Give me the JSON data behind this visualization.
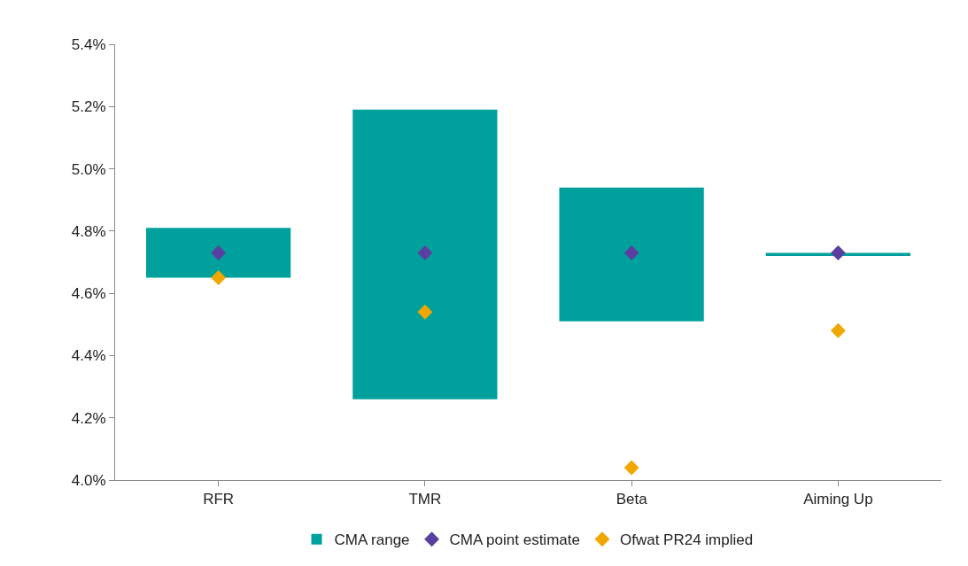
{
  "chart_data": {
    "type": "bar",
    "categories": [
      "RFR",
      "TMR",
      "Beta",
      "Aiming Up"
    ],
    "series": [
      {
        "name": "CMA range",
        "color": "#00a19c",
        "base": [
          4.65,
          4.26,
          4.51,
          4.72
        ],
        "values": [
          0.16,
          0.93,
          0.43,
          0.01
        ]
      },
      {
        "name": "CMA point estimate",
        "type": "scatter",
        "color": "#5b3fa0",
        "values": [
          4.73,
          4.73,
          4.73,
          4.73
        ]
      },
      {
        "name": "Ofwat PR24 implied",
        "type": "scatter",
        "color": "#f0a800",
        "values": [
          4.65,
          4.54,
          4.04,
          4.48
        ]
      }
    ],
    "ylim": [
      4.0,
      5.4
    ],
    "yticks": [
      {
        "value": 4.0,
        "label": "4.0%"
      },
      {
        "value": 4.2,
        "label": "4.2%"
      },
      {
        "value": 4.4,
        "label": "4.4%"
      },
      {
        "value": 4.6,
        "label": "4.6%"
      },
      {
        "value": 4.8,
        "label": "4.8%"
      },
      {
        "value": 5.0,
        "label": "5.0%"
      },
      {
        "value": 5.2,
        "label": "5.2%"
      },
      {
        "value": 5.4,
        "label": "5.4%"
      }
    ],
    "marker": "diamond",
    "legend": "bottom"
  }
}
